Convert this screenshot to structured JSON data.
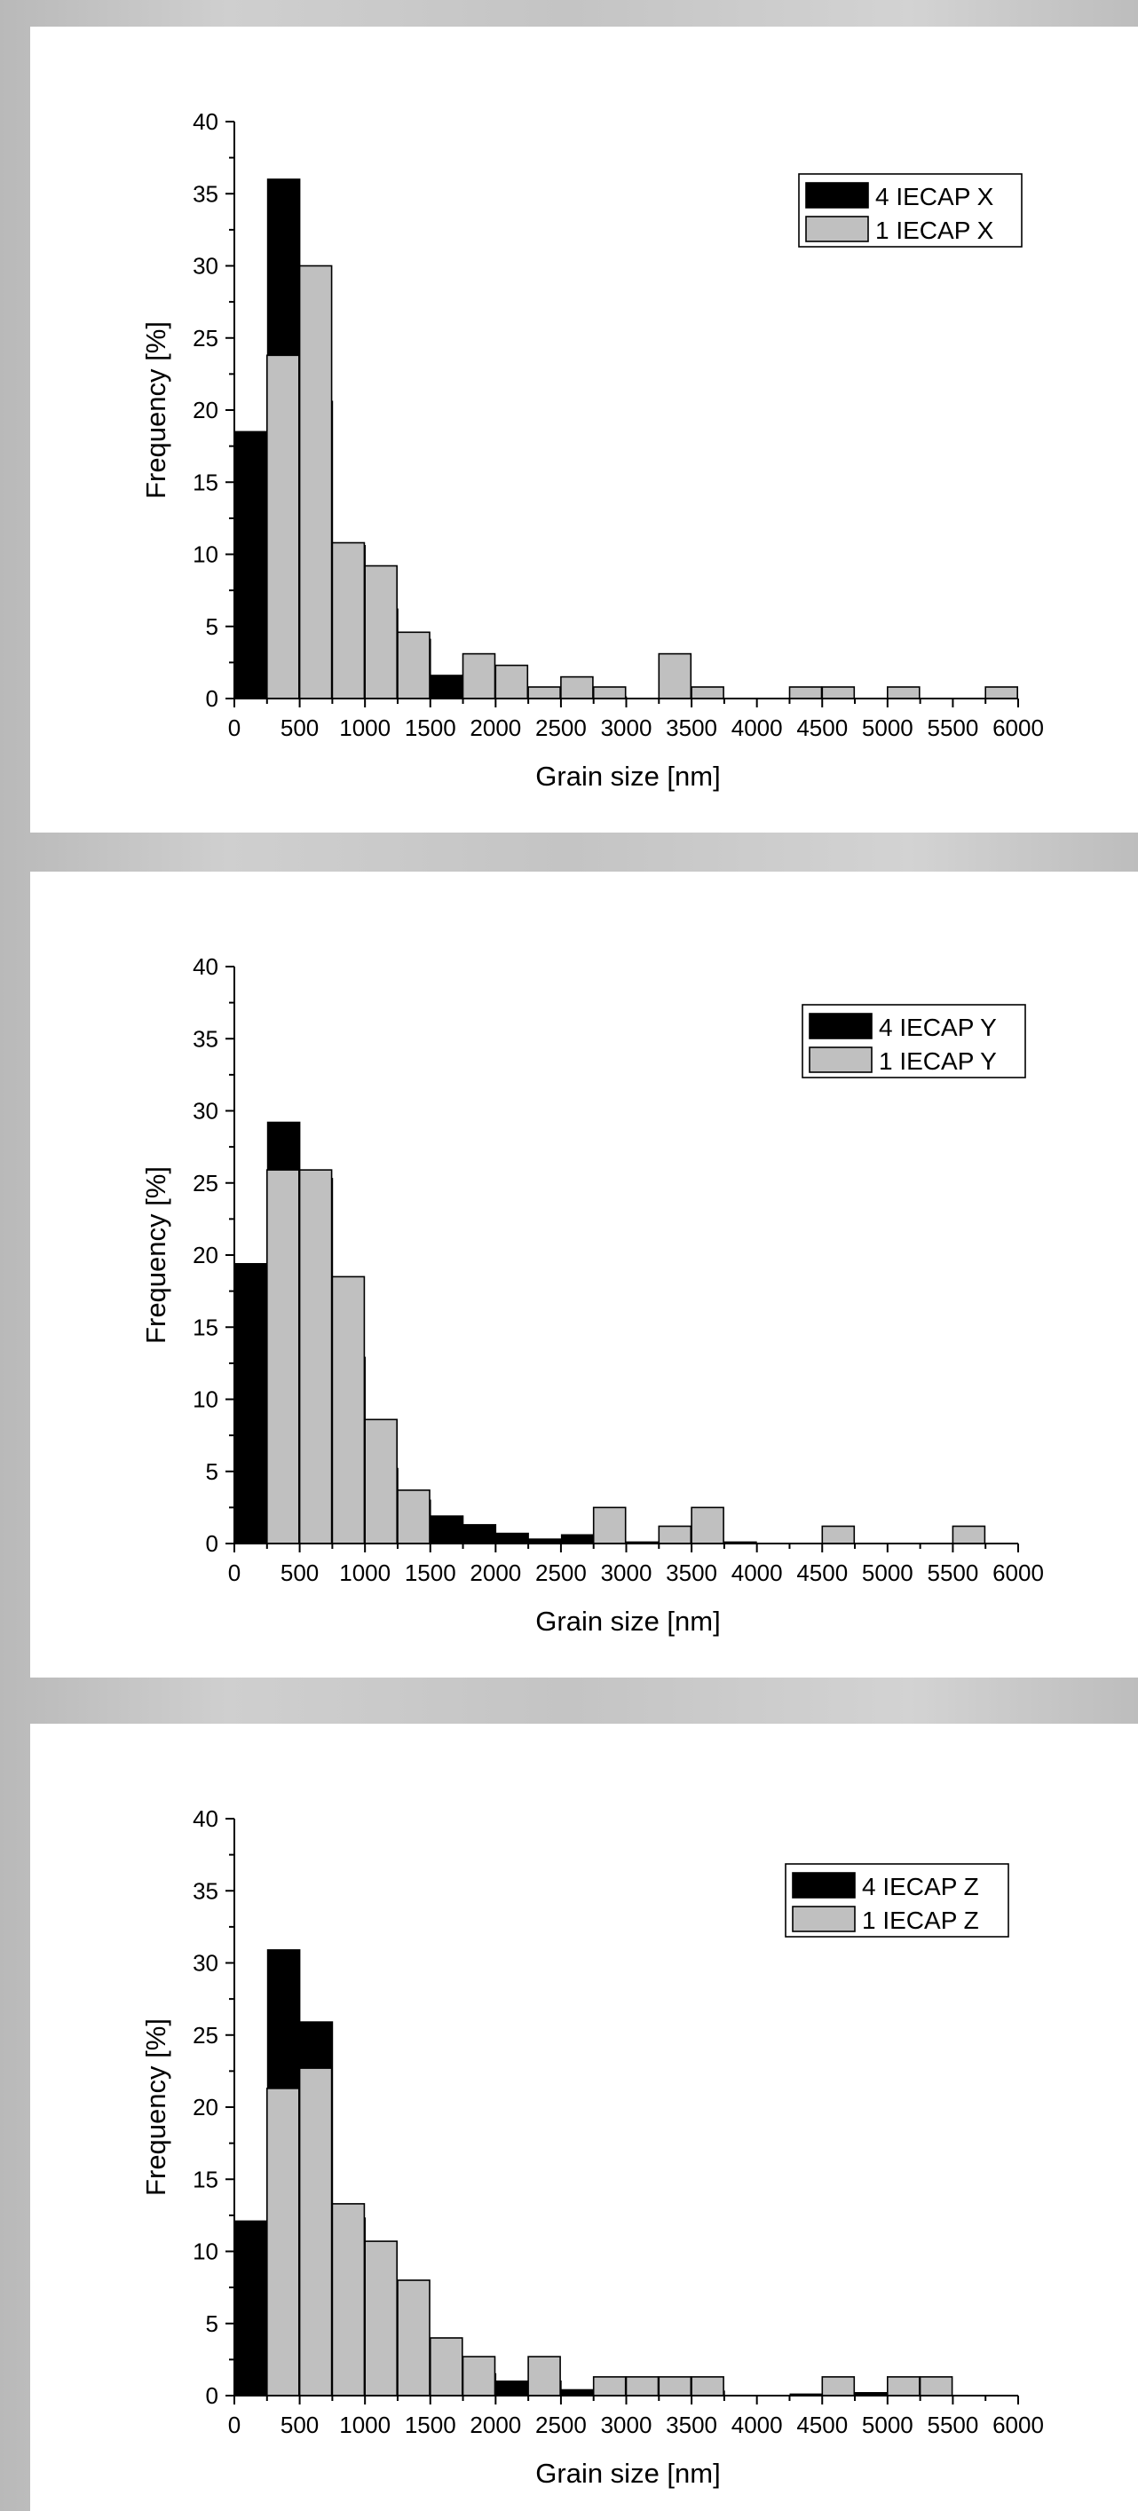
{
  "chart_data": [
    {
      "type": "bar",
      "xlabel": "Grain size [nm]",
      "ylabel": "Frequency [%]",
      "xlim": [
        0,
        6000
      ],
      "ylim": [
        0,
        40
      ],
      "xticks": [
        0,
        500,
        1000,
        1500,
        2000,
        2500,
        3000,
        3500,
        4000,
        4500,
        5000,
        5500,
        6000
      ],
      "yticks": [
        0,
        5,
        10,
        15,
        20,
        25,
        30,
        35,
        40
      ],
      "legend_position": "top-right",
      "series": [
        {
          "name": "4 IECAP X",
          "color": "#000000",
          "x": [
            250,
            500,
            750,
            1000,
            1250,
            1500,
            1750,
            2000,
            2250,
            2750,
            3000
          ],
          "values": [
            18.5,
            36,
            20.6,
            10.6,
            6.2,
            4.1,
            1.6,
            1.3,
            0.3,
            0.3,
            0.1
          ]
        },
        {
          "name": "1 IECAP X",
          "color": "#c0c0c0",
          "x": [
            250,
            500,
            750,
            1000,
            1250,
            1750,
            2000,
            2250,
            2500,
            2750,
            3250,
            3500,
            4250,
            4500,
            5000,
            5750
          ],
          "values": [
            23.8,
            30,
            10.8,
            9.2,
            4.6,
            3.1,
            2.3,
            0.8,
            1.5,
            0.8,
            3.1,
            0.8,
            0.8,
            0.8,
            0.8,
            0.8
          ]
        }
      ]
    },
    {
      "type": "bar",
      "xlabel": "Grain size [nm]",
      "ylabel": "Frequency [%]",
      "xlim": [
        0,
        6000
      ],
      "ylim": [
        0,
        40
      ],
      "xticks": [
        0,
        500,
        1000,
        1500,
        2000,
        2500,
        3000,
        3500,
        4000,
        4500,
        5000,
        5500,
        6000
      ],
      "yticks": [
        0,
        5,
        10,
        15,
        20,
        25,
        30,
        35,
        40
      ],
      "legend_position": "top-right",
      "series": [
        {
          "name": "4 IECAP Y",
          "color": "#000000",
          "x": [
            250,
            500,
            750,
            1000,
            1250,
            1500,
            1750,
            2000,
            2250,
            2500,
            2750
          ],
          "values": [
            19.4,
            29.2,
            25.3,
            12.9,
            5.2,
            3,
            1.9,
            1.3,
            0.7,
            0.3,
            0.6
          ]
        },
        {
          "name": "1 IECAP Y",
          "color": "#c0c0c0",
          "x": [
            250,
            500,
            750,
            1000,
            1250,
            2750,
            3000,
            3250,
            3500,
            3750,
            4500,
            5500
          ],
          "values": [
            25.9,
            25.9,
            18.5,
            8.6,
            3.7,
            2.5,
            0.1,
            1.2,
            2.5,
            0.1,
            1.2,
            1.2
          ]
        }
      ]
    },
    {
      "type": "bar",
      "xlabel": "Grain size [nm]",
      "ylabel": "Frequency [%]",
      "xlim": [
        0,
        6000
      ],
      "ylim": [
        0,
        40
      ],
      "xticks": [
        0,
        500,
        1000,
        1500,
        2000,
        2500,
        3000,
        3500,
        4000,
        4500,
        5000,
        5500,
        6000
      ],
      "yticks": [
        0,
        5,
        10,
        15,
        20,
        25,
        30,
        35,
        40
      ],
      "legend_position": "top-right",
      "series": [
        {
          "name": "4 IECAP Z",
          "color": "#000000",
          "x": [
            250,
            500,
            750,
            1000,
            1250,
            1500,
            1750,
            2000,
            2250,
            2500,
            2750,
            3000,
            3250,
            3500,
            3750,
            4500,
            4750,
            5000
          ],
          "values": [
            12.1,
            30.9,
            25.9,
            12.3,
            6.2,
            3.9,
            1.9,
            1.5,
            1,
            1,
            0.4,
            0.4,
            1,
            0.2,
            0.3,
            0.1,
            0.1,
            0.2
          ]
        },
        {
          "name": "1 IECAP Z",
          "color": "#c0c0c0",
          "x": [
            250,
            500,
            750,
            1000,
            1250,
            1500,
            1750,
            2250,
            2750,
            3000,
            3250,
            3500,
            4500,
            5000,
            5250
          ],
          "values": [
            21.3,
            22.7,
            13.3,
            10.7,
            8,
            4,
            2.7,
            2.7,
            1.3,
            1.3,
            1.3,
            1.3,
            1.3,
            1.3,
            1.3
          ]
        }
      ]
    }
  ]
}
